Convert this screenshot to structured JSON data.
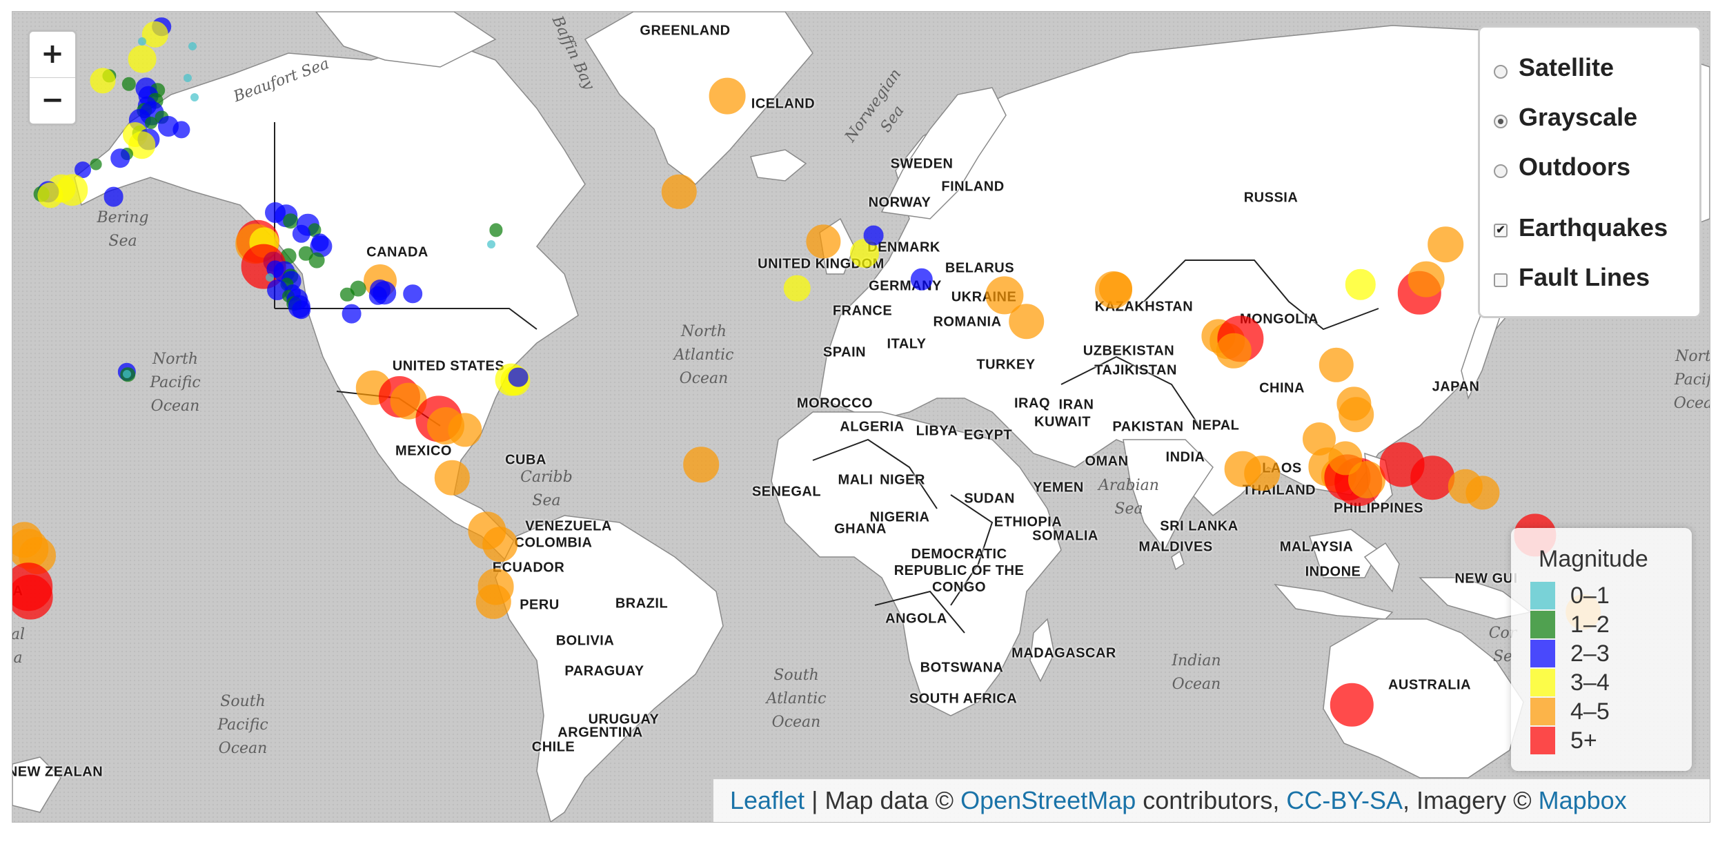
{
  "map": {
    "base_layers": [
      {
        "label": "Satellite",
        "selected": false
      },
      {
        "label": "Grayscale",
        "selected": true
      },
      {
        "label": "Outdoors",
        "selected": false
      }
    ],
    "overlays": [
      {
        "label": "Earthquakes",
        "checked": true
      },
      {
        "label": "Fault Lines",
        "checked": false
      }
    ],
    "zoom": {
      "in_label": "+",
      "out_label": "−"
    },
    "legend": {
      "title": "Magnitude",
      "items": [
        {
          "label": "0–1",
          "color": "#44c3cb"
        },
        {
          "label": "1–2",
          "color": "#0a7d0a"
        },
        {
          "label": "2–3",
          "color": "#0000ff"
        },
        {
          "label": "3–4",
          "color": "#ffff00"
        },
        {
          "label": "4–5",
          "color": "#ff9900"
        },
        {
          "label": "5+",
          "color": "#ff0000"
        }
      ]
    },
    "attribution": {
      "leaflet": "Leaflet",
      "sep": " | Map data © ",
      "osm": "OpenStreetMap",
      "contrib": " contributors, ",
      "license": "CC-BY-SA",
      "imagery": ", Imagery © ",
      "mapbox": "Mapbox"
    },
    "country_labels": [
      "GREENLAND",
      "ICELAND",
      "SWEDEN",
      "FINLAND",
      "NORWAY",
      "DENMARK",
      "UNITED KINGDOM",
      "BELARUS",
      "GERMANY",
      "UKRAINE",
      "FRANCE",
      "ROMANIA",
      "SPAIN",
      "ITALY",
      "TURKEY",
      "MOROCCO",
      "ALGERIA",
      "LIBYA",
      "EGYPT",
      "MALI",
      "NIGER",
      "SENEGAL",
      "NIGERIA",
      "GHANA",
      "SUDAN",
      "ETHIOPIA",
      "SOMALIA",
      "DEMOCRATIC\nREPUBLIC OF THE\nCONGO",
      "ANGOLA",
      "BOTSWANA",
      "SOUTH AFRICA",
      "MADAGASCAR",
      "RUSSIA",
      "KAZAKHSTAN",
      "MONGOLIA",
      "UZBEKISTAN",
      "TAJIKISTAN",
      "IRAQ",
      "IRAN",
      "KUWAIT",
      "PAKISTAN",
      "NEPAL",
      "OMAN",
      "YEMEN",
      "INDIA",
      "CHINA",
      "LAOS",
      "THAILAND",
      "SRI LANKA",
      "MALDIVES",
      "PHILIPPINES",
      "MALAYSIA",
      "INDONE",
      "JAPAN",
      "NEW GUI",
      "AUSTRALIA",
      "CANADA",
      "UNITED STATES",
      "MEXICO",
      "CUBA",
      "VENEZUELA",
      "COLOMBIA",
      "ECUADOR",
      "PERU",
      "BRAZIL",
      "BOLIVIA",
      "PARAGUAY",
      "URUGUAY",
      "ARGENTINA",
      "CHILE",
      "NEW ZEALAN",
      "A"
    ],
    "sea_labels": [
      "Beaufort Sea",
      "Baffin Bay",
      "Norwegian\nSea",
      "Bering\nSea",
      "North\nPacific\nOcean",
      "North\nAtlantic\nOcean",
      "Caribb\nSea",
      "South\nAtlantic\nOcean",
      "South\nPacific\nOcean",
      "Arabian\nSea",
      "Indian\nOcean",
      "Nort\nPacif\nOcea",
      "Cor\nSe",
      "al\na"
    ],
    "earthquakes": [
      {
        "lat": 70.2,
        "lon": -147.5,
        "mag": 2.3
      },
      {
        "lat": 69.6,
        "lon": -149.0,
        "mag": 3.2
      },
      {
        "lat": 67.5,
        "lon": -152.0,
        "mag": 3.4
      },
      {
        "lat": 66.0,
        "lon": -159.5,
        "mag": 1.6
      },
      {
        "lat": 65.5,
        "lon": -161.0,
        "mag": 3.1
      },
      {
        "lat": 65.2,
        "lon": -155.0,
        "mag": 1.7
      },
      {
        "lat": 64.8,
        "lon": -151.0,
        "mag": 2.6
      },
      {
        "lat": 64.6,
        "lon": -148.5,
        "mag": 1.8
      },
      {
        "lat": 64.0,
        "lon": -150.5,
        "mag": 2.4
      },
      {
        "lat": 63.5,
        "lon": -149.0,
        "mag": 1.9
      },
      {
        "lat": 63.0,
        "lon": -150.8,
        "mag": 2.2
      },
      {
        "lat": 62.5,
        "lon": -151.5,
        "mag": 1.8
      },
      {
        "lat": 62.2,
        "lon": -149.8,
        "mag": 2.9
      },
      {
        "lat": 61.8,
        "lon": -147.5,
        "mag": 1.6
      },
      {
        "lat": 61.5,
        "lon": -152.5,
        "mag": 2.7
      },
      {
        "lat": 61.2,
        "lon": -150.0,
        "mag": 1.5
      },
      {
        "lat": 60.8,
        "lon": -146.0,
        "mag": 2.5
      },
      {
        "lat": 60.4,
        "lon": -143.0,
        "mag": 2.1
      },
      {
        "lat": 60.0,
        "lon": -152.5,
        "mag": 1.9
      },
      {
        "lat": 59.8,
        "lon": -153.5,
        "mag": 3.0
      },
      {
        "lat": 59.3,
        "lon": -150.5,
        "mag": 2.6
      },
      {
        "lat": 58.6,
        "lon": -152.0,
        "mag": 3.3
      },
      {
        "lat": 57.5,
        "lon": -155.5,
        "mag": 1.5
      },
      {
        "lat": 57.0,
        "lon": -157.0,
        "mag": 2.3
      },
      {
        "lat": 56.2,
        "lon": -162.5,
        "mag": 1.4
      },
      {
        "lat": 55.5,
        "lon": -165.5,
        "mag": 2.0
      },
      {
        "lat": 53.0,
        "lon": -170.5,
        "mag": 3.4
      },
      {
        "lat": 52.8,
        "lon": -168.0,
        "mag": 3.8
      },
      {
        "lat": 52.5,
        "lon": -173.5,
        "mag": 2.6
      },
      {
        "lat": 52.2,
        "lon": -175.0,
        "mag": 1.9
      },
      {
        "lat": 51.8,
        "lon": -158.5,
        "mag": 2.4
      },
      {
        "lat": 52.0,
        "lon": -173.0,
        "mag": 3.1
      },
      {
        "lat": 65.8,
        "lon": -141.5,
        "mag": 0.8
      },
      {
        "lat": 68.6,
        "lon": -140.5,
        "mag": 0.7
      },
      {
        "lat": 63.9,
        "lon": -140.0,
        "mag": 0.9
      },
      {
        "lat": 69.0,
        "lon": -152.0,
        "mag": 0.6
      },
      {
        "lat": 49.5,
        "lon": -121.5,
        "mag": 2.5
      },
      {
        "lat": 49.0,
        "lon": -119.0,
        "mag": 2.8
      },
      {
        "lat": 48.2,
        "lon": -118.0,
        "mag": 1.8
      },
      {
        "lat": 47.6,
        "lon": -114.0,
        "mag": 2.7
      },
      {
        "lat": 46.8,
        "lon": -112.5,
        "mag": 1.6
      },
      {
        "lat": 46.2,
        "lon": -115.5,
        "mag": 2.2
      },
      {
        "lat": 45.0,
        "lon": -125.5,
        "mag": 5.2
      },
      {
        "lat": 44.6,
        "lon": -126.0,
        "mag": 4.8
      },
      {
        "lat": 44.8,
        "lon": -124.0,
        "mag": 3.6
      },
      {
        "lat": 44.2,
        "lon": -111.0,
        "mag": 2.6
      },
      {
        "lat": 43.0,
        "lon": -114.5,
        "mag": 1.7
      },
      {
        "lat": 42.5,
        "lon": -118.5,
        "mag": 1.9
      },
      {
        "lat": 41.6,
        "lon": -122.0,
        "mag": 2.4
      },
      {
        "lat": 41.0,
        "lon": -120.0,
        "mag": 0.8
      },
      {
        "lat": 40.8,
        "lon": -124.2,
        "mag": 5.4
      },
      {
        "lat": 40.3,
        "lon": -121.5,
        "mag": 2.1
      },
      {
        "lat": 39.8,
        "lon": -119.5,
        "mag": 2.6
      },
      {
        "lat": 39.0,
        "lon": -118.0,
        "mag": 1.8
      },
      {
        "lat": 38.8,
        "lon": -122.8,
        "mag": 0.9
      },
      {
        "lat": 38.2,
        "lon": -117.8,
        "mag": 2.4
      },
      {
        "lat": 37.6,
        "lon": -118.8,
        "mag": 1.6
      },
      {
        "lat": 36.6,
        "lon": -121.0,
        "mag": 2.5
      },
      {
        "lat": 36.0,
        "lon": -117.5,
        "mag": 2.0
      },
      {
        "lat": 35.4,
        "lon": -118.5,
        "mag": 1.5
      },
      {
        "lat": 34.8,
        "lon": -116.5,
        "mag": 2.6
      },
      {
        "lat": 34.0,
        "lon": -117.2,
        "mag": 1.8
      },
      {
        "lat": 33.4,
        "lon": -116.0,
        "mag": 2.7
      },
      {
        "lat": 32.8,
        "lon": -115.5,
        "mag": 2.3
      },
      {
        "lat": 44.8,
        "lon": -111.2,
        "mag": 2.1
      },
      {
        "lat": 41.8,
        "lon": -112.0,
        "mag": 1.9
      },
      {
        "lat": 38.2,
        "lon": -97.5,
        "mag": 4.0
      },
      {
        "lat": 36.5,
        "lon": -97.5,
        "mag": 2.5
      },
      {
        "lat": 36.0,
        "lon": -96.5,
        "mag": 2.8
      },
      {
        "lat": 35.5,
        "lon": -98.0,
        "mag": 2.2
      },
      {
        "lat": 35.8,
        "lon": -90.0,
        "mag": 2.3
      },
      {
        "lat": 36.8,
        "lon": -102.5,
        "mag": 1.9
      },
      {
        "lat": 35.7,
        "lon": -105.0,
        "mag": 1.7
      },
      {
        "lat": 32.0,
        "lon": -104.0,
        "mag": 2.4
      },
      {
        "lat": 44.5,
        "lon": -72.0,
        "mag": 0.9
      },
      {
        "lat": 46.8,
        "lon": -71.0,
        "mag": 1.6
      },
      {
        "lat": 20.0,
        "lon": -155.5,
        "mag": 2.2
      },
      {
        "lat": 19.4,
        "lon": -155.3,
        "mag": 1.8
      },
      {
        "lat": 19.5,
        "lon": -155.5,
        "mag": 0.9
      },
      {
        "lat": 18.0,
        "lon": -66.5,
        "mag": 3.6
      },
      {
        "lat": 18.3,
        "lon": -67.5,
        "mag": 3.9
      },
      {
        "lat": 18.8,
        "lon": -65.8,
        "mag": 2.4
      },
      {
        "lat": 16.5,
        "lon": -99.0,
        "mag": 4.2
      },
      {
        "lat": 14.5,
        "lon": -93.0,
        "mag": 5.0
      },
      {
        "lat": 13.5,
        "lon": -91.0,
        "mag": 4.4
      },
      {
        "lat": 9.5,
        "lon": -84.0,
        "mag": 5.6
      },
      {
        "lat": 8.0,
        "lon": -82.5,
        "mag": 4.5
      },
      {
        "lat": 7.0,
        "lon": -78.0,
        "mag": 4.1
      },
      {
        "lat": -4.0,
        "lon": -81.0,
        "mag": 4.2
      },
      {
        "lat": -16.0,
        "lon": -73.0,
        "mag": 4.6
      },
      {
        "lat": -19.0,
        "lon": -70.0,
        "mag": 4.3
      },
      {
        "lat": -28.0,
        "lon": -71.0,
        "mag": 4.4
      },
      {
        "lat": -31.0,
        "lon": -71.5,
        "mag": 4.2
      },
      {
        "lat": -18.0,
        "lon": -179.0,
        "mag": 4.3
      },
      {
        "lat": -20.0,
        "lon": -178.0,
        "mag": 4.8
      },
      {
        "lat": -21.5,
        "lon": -176.0,
        "mag": 4.5
      },
      {
        "lat": -28.0,
        "lon": -178.0,
        "mag": 5.8
      },
      {
        "lat": -30.0,
        "lon": -177.5,
        "mag": 5.4
      },
      {
        "lat": 64.0,
        "lon": -18.0,
        "mag": 4.4
      },
      {
        "lat": 52.5,
        "lon": -29.0,
        "mag": 4.2
      },
      {
        "lat": 78.5,
        "lon": 7.0,
        "mag": 4.3
      },
      {
        "lat": -1.0,
        "lon": -24.0,
        "mag": 4.3
      },
      {
        "lat": 45.0,
        "lon": 4.0,
        "mag": 4.1
      },
      {
        "lat": 43.0,
        "lon": 13.5,
        "mag": 3.5
      },
      {
        "lat": 46.0,
        "lon": 15.5,
        "mag": 2.4
      },
      {
        "lat": 36.8,
        "lon": -2.0,
        "mag": 3.2
      },
      {
        "lat": 38.5,
        "lon": 26.5,
        "mag": 2.7
      },
      {
        "lat": 35.5,
        "lon": 45.5,
        "mag": 4.6
      },
      {
        "lat": 30.5,
        "lon": 50.5,
        "mag": 4.3
      },
      {
        "lat": 36.5,
        "lon": 70.5,
        "mag": 4.5
      },
      {
        "lat": 36.8,
        "lon": 71.0,
        "mag": 4.0
      },
      {
        "lat": 27.5,
        "lon": 94.5,
        "mag": 4.1
      },
      {
        "lat": 26.5,
        "lon": 96.5,
        "mag": 4.3
      },
      {
        "lat": 27.0,
        "lon": 99.5,
        "mag": 5.6
      },
      {
        "lat": 24.5,
        "lon": 98.0,
        "mag": 4.2
      },
      {
        "lat": 37.5,
        "lon": 127.0,
        "mag": 3.7
      },
      {
        "lat": 21.5,
        "lon": 121.5,
        "mag": 4.2
      },
      {
        "lat": 13.0,
        "lon": 125.5,
        "mag": 4.1
      },
      {
        "lat": 10.5,
        "lon": 126.0,
        "mag": 4.3
      },
      {
        "lat": 36.0,
        "lon": 140.5,
        "mag": 5.2
      },
      {
        "lat": 38.5,
        "lon": 142.0,
        "mag": 4.4
      },
      {
        "lat": 44.5,
        "lon": 146.5,
        "mag": 4.3
      },
      {
        "lat": 52.0,
        "lon": 158.0,
        "mag": 4.2
      },
      {
        "lat": 5.0,
        "lon": 117.5,
        "mag": 4.0
      },
      {
        "lat": -2.0,
        "lon": 100.0,
        "mag": 4.4
      },
      {
        "lat": -3.0,
        "lon": 104.5,
        "mag": 4.3
      },
      {
        "lat": -1.5,
        "lon": 119.5,
        "mag": 4.6
      },
      {
        "lat": -3.5,
        "lon": 122.0,
        "mag": 4.2
      },
      {
        "lat": -4.0,
        "lon": 124.0,
        "mag": 5.6
      },
      {
        "lat": -5.0,
        "lon": 126.5,
        "mag": 5.8
      },
      {
        "lat": -4.5,
        "lon": 128.5,
        "mag": 4.5
      },
      {
        "lat": 0.5,
        "lon": 123.5,
        "mag": 4.1
      },
      {
        "lat": -1.0,
        "lon": 136.5,
        "mag": 5.4
      },
      {
        "lat": -4.0,
        "lon": 143.5,
        "mag": 5.3
      },
      {
        "lat": -6.0,
        "lon": 151.0,
        "mag": 4.2
      },
      {
        "lat": -7.5,
        "lon": 155.0,
        "mag": 4.1
      },
      {
        "lat": -17.0,
        "lon": 167.0,
        "mag": 5.1
      },
      {
        "lat": -33.0,
        "lon": 178.0,
        "mag": 4.3
      },
      {
        "lat": -49.0,
        "lon": 125.0,
        "mag": 5.2
      }
    ]
  }
}
